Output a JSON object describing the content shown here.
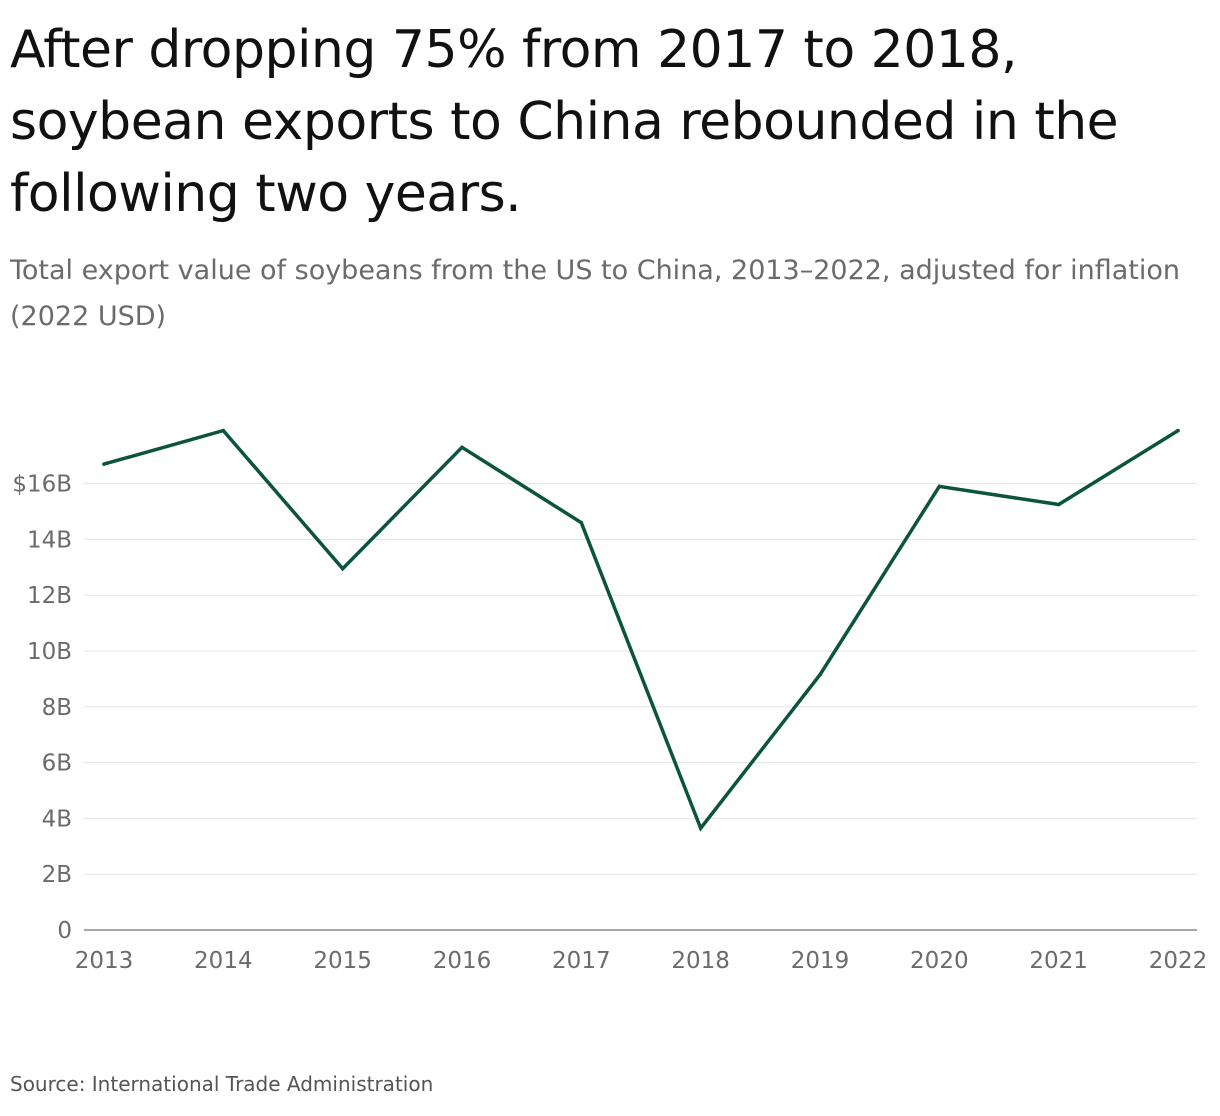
{
  "title": "After dropping 75% from 2017 to 2018, soybean exports to China rebounded in the following two years.",
  "subtitle": "Total export value of soybeans from the US to China, 2013–2022, adjusted for inflation (2022 USD)",
  "source": "Source: International Trade Administration",
  "colors": {
    "line": "#0d5440",
    "grid": "#e3e3e3",
    "axis": "#8a8a8a",
    "tick_text": "#6b6b6b"
  },
  "chart_data": {
    "type": "line",
    "title": "After dropping 75% from 2017 to 2018, soybean exports to China rebounded in the following two years.",
    "subtitle": "Total export value of soybeans from the US to China, 2013–2022, adjusted for inflation (2022 USD)",
    "x": [
      2013,
      2014,
      2015,
      2016,
      2017,
      2018,
      2019,
      2020,
      2021,
      2022
    ],
    "x_tick_labels": [
      "2013",
      "2014",
      "2015",
      "2016",
      "2017",
      "2018",
      "2019",
      "2020",
      "2021",
      "2022"
    ],
    "series": [
      {
        "values": [
          16.7,
          17.9,
          12.95,
          17.3,
          14.6,
          3.65,
          9.15,
          15.9,
          15.25,
          17.9
        ]
      }
    ],
    "y_unit": "billion USD (2022)",
    "ylim": [
      0,
      18
    ],
    "y_ticks": [
      0,
      2,
      4,
      6,
      8,
      10,
      12,
      14,
      16
    ],
    "y_tick_labels": [
      "0",
      "2B",
      "4B",
      "6B",
      "8B",
      "10B",
      "12B",
      "14B",
      "$16B"
    ],
    "grid": true,
    "legend": "none"
  }
}
